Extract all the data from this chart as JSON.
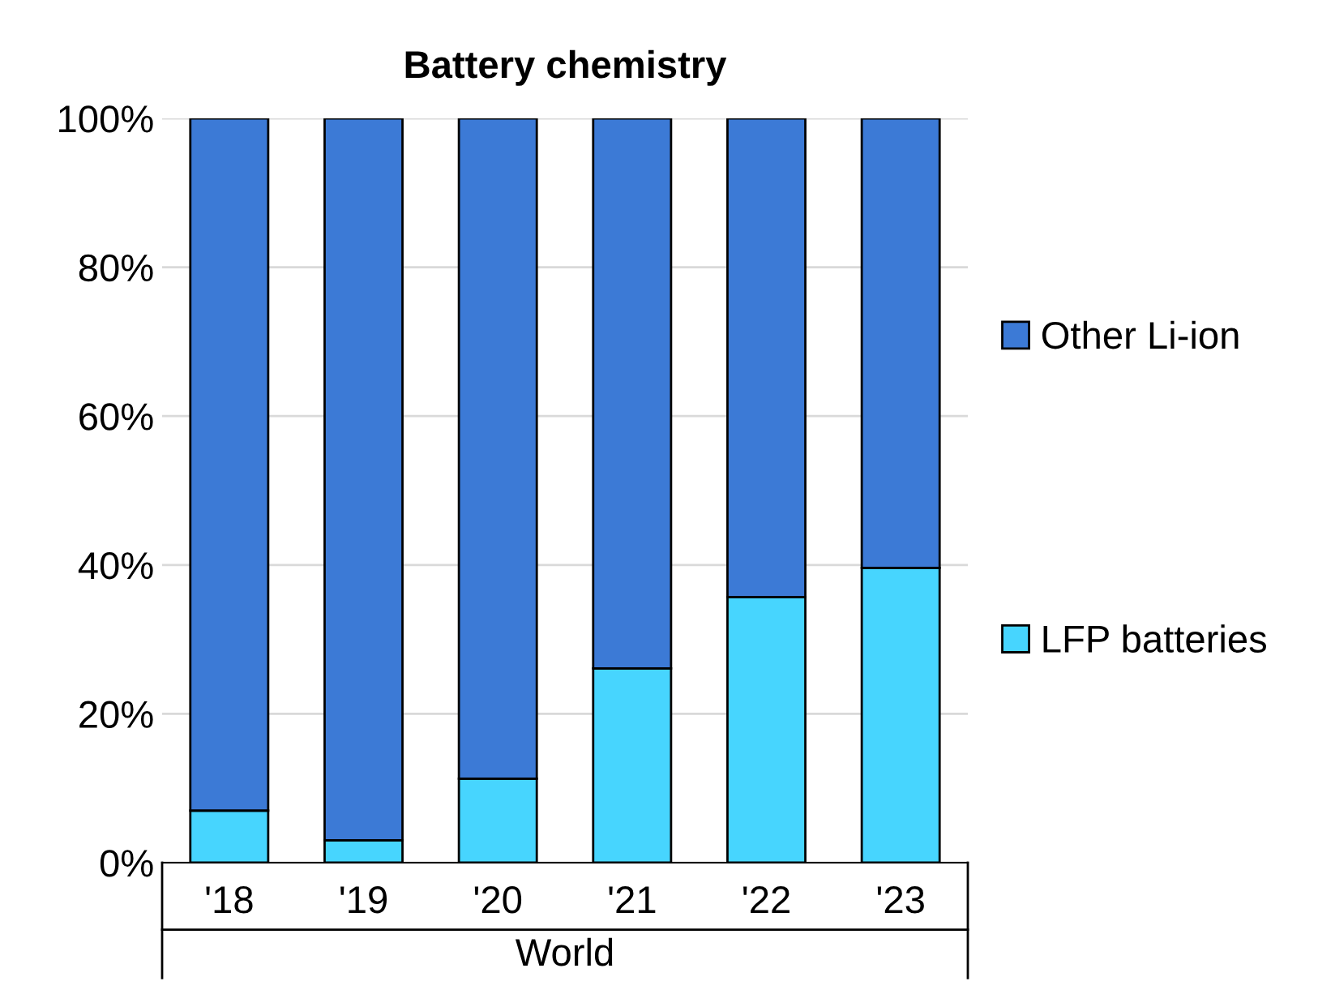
{
  "chart_data": {
    "type": "bar",
    "stacked": true,
    "title": "Battery chemistry",
    "categories": [
      "'18",
      "'19",
      "'20",
      "'21",
      "'22",
      "'23"
    ],
    "series": [
      {
        "name": "LFP batteries",
        "color": "#47d5fe",
        "values": [
          7.0,
          3.0,
          11.3,
          26.1,
          35.7,
          39.6
        ]
      },
      {
        "name": "Other Li-ion",
        "color": "#3c7ad6",
        "values": [
          93.0,
          97.0,
          88.7,
          73.9,
          64.3,
          60.4
        ]
      }
    ],
    "ylim": [
      0,
      100
    ],
    "yticks": [
      {
        "value": 0,
        "label": "0%"
      },
      {
        "value": 20,
        "label": "20%"
      },
      {
        "value": 40,
        "label": "40%"
      },
      {
        "value": 60,
        "label": "60%"
      },
      {
        "value": 80,
        "label": "80%"
      },
      {
        "value": 100,
        "label": "100%"
      }
    ],
    "grid": "y",
    "legend": "right",
    "annotations": [
      "World"
    ]
  }
}
